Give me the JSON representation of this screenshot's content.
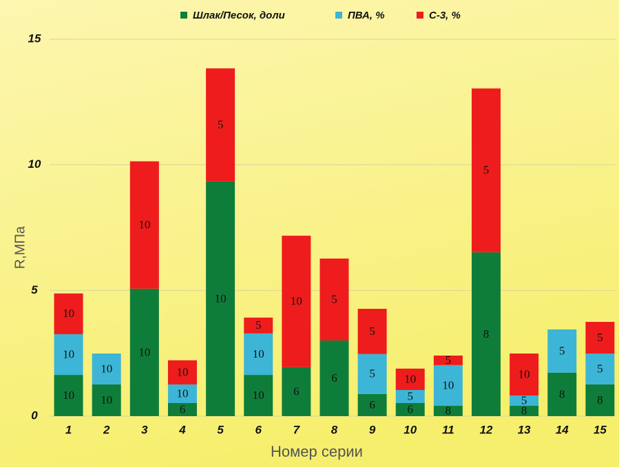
{
  "chart_data": {
    "type": "stacked_bar",
    "categories": [
      "1",
      "2",
      "3",
      "4",
      "5",
      "6",
      "7",
      "8",
      "9",
      "10",
      "11",
      "12",
      "13",
      "14",
      "15"
    ],
    "series": [
      {
        "name": "Шлак/Песок, доли",
        "color": "#0f7d3a",
        "values": [
          1.64,
          1.26,
          5.07,
          0.52,
          9.34,
          1.64,
          1.95,
          3.01,
          0.88,
          0.52,
          0.41,
          6.52,
          0.41,
          1.73,
          1.26
        ],
        "segment_labels": [
          "10",
          "10",
          "10",
          "6",
          "10",
          "10",
          "6",
          "6",
          "6",
          "6",
          "8",
          "8",
          "8",
          "8",
          "8"
        ]
      },
      {
        "name": "ПВА, %",
        "color": "#3db5d6",
        "values": [
          1.62,
          1.23,
          null,
          0.74,
          null,
          1.65,
          null,
          null,
          1.59,
          0.52,
          1.62,
          null,
          0.41,
          1.72,
          1.23
        ],
        "segment_labels": [
          "10",
          "10",
          null,
          "10",
          null,
          "10",
          null,
          null,
          "5",
          "5",
          "10",
          null,
          "5",
          "5",
          "5"
        ]
      },
      {
        "name": "С-3, %",
        "color": "#ee1c1c",
        "values": [
          1.62,
          null,
          5.07,
          0.96,
          4.5,
          0.63,
          5.23,
          3.26,
          1.8,
          0.85,
          0.38,
          6.52,
          1.67,
          null,
          1.26
        ],
        "segment_labels": [
          "10",
          null,
          "10",
          "10",
          "5",
          "5",
          "10",
          "5",
          "5",
          "10",
          "5",
          "5",
          "10",
          null,
          "5"
        ]
      }
    ],
    "ylim": [
      0,
      15
    ],
    "yticks": [
      0,
      5,
      10,
      15
    ],
    "grid": true,
    "y_label": "R,МПа",
    "x_label": "Номер серии",
    "legend": "top"
  }
}
